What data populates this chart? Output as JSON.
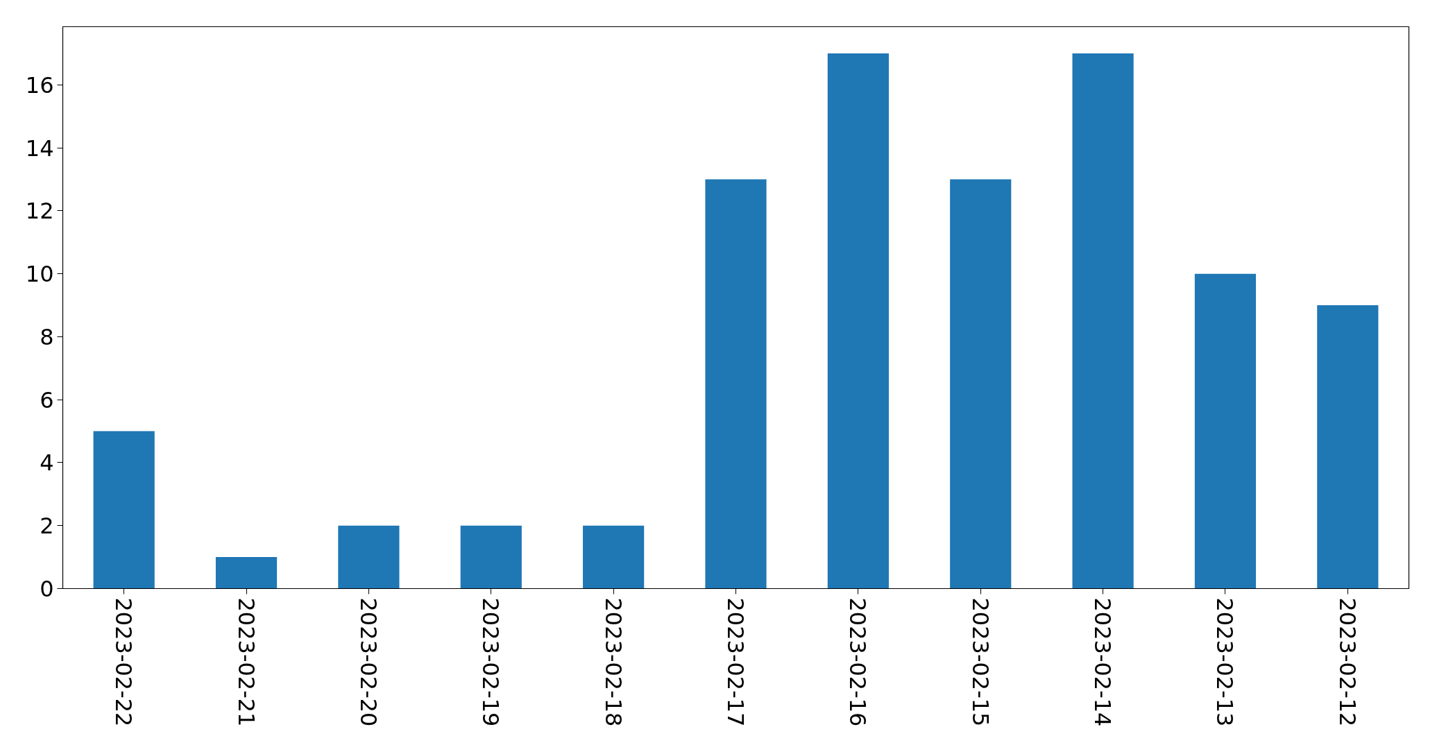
{
  "chart_data": {
    "type": "bar",
    "categories": [
      "2023-02-22",
      "2023-02-21",
      "2023-02-20",
      "2023-02-19",
      "2023-02-18",
      "2023-02-17",
      "2023-02-16",
      "2023-02-15",
      "2023-02-14",
      "2023-02-13",
      "2023-02-12"
    ],
    "values": [
      5,
      1,
      2,
      2,
      2,
      13,
      17,
      13,
      17,
      10,
      9
    ],
    "color": "#1f77b4",
    "ylim": [
      0,
      17.85
    ],
    "yticks": [
      0,
      2,
      4,
      6,
      8,
      10,
      12,
      14,
      16
    ],
    "grid": false
  }
}
